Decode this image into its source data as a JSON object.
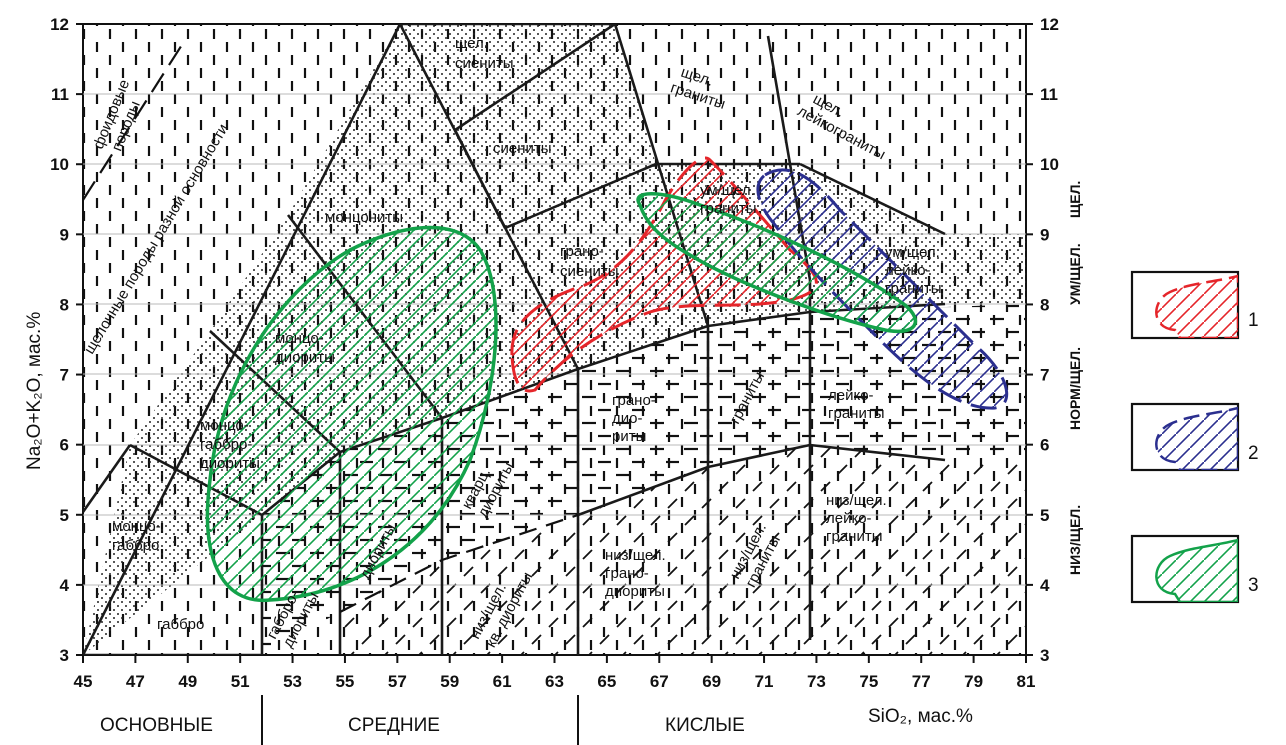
{
  "axes": {
    "x_title": "SiO₂, мас.%",
    "y_title": "Na₂O+K₂O, мас.%",
    "x_ticks": [
      "45",
      "47",
      "49",
      "51",
      "53",
      "55",
      "57",
      "59",
      "61",
      "63",
      "65",
      "67",
      "69",
      "71",
      "73",
      "75",
      "77",
      "79",
      "81"
    ],
    "y_ticks": [
      "3",
      "4",
      "5",
      "6",
      "7",
      "8",
      "9",
      "10",
      "11",
      "12"
    ]
  },
  "groups": {
    "basic": "ОСНОВНЫЕ",
    "intermediate": "СРЕДНИЕ",
    "acid": "КИСЛЫЕ"
  },
  "side_labels": {
    "low": "НИЗ/ЩЕЛ.",
    "normal": "НОРМ/ЩЕЛ.",
    "moderate": "УМ/ЩЕЛ.",
    "alkaline": "ЩЕЛ."
  },
  "fields": {
    "foid": [
      "фоидовые",
      "породы"
    ],
    "alk_diag": "щелочные породы разной основности",
    "alk_syenites": [
      "щел.",
      "сиениты"
    ],
    "syenites": "сиениты",
    "alk_granites": [
      "щел.",
      "граниты"
    ],
    "alk_leucogranites": [
      "щел.",
      "лейкограниты"
    ],
    "monzonites": "монцониты",
    "granosyenites": [
      "грано-",
      "сиениты"
    ],
    "mod_granites": [
      "ум/щел.",
      "граниты"
    ],
    "mod_leucogranites": [
      "ум/щел.",
      "лейко-",
      "граниты"
    ],
    "monzodiorites": [
      "монцо-",
      "диориты"
    ],
    "monzogabbrodiorites": [
      "монцо-",
      "габбро-",
      "диориты"
    ],
    "monzogabbro": [
      "монцо-",
      "габбро"
    ],
    "gabbro": "габбро",
    "gabbrodiorites": [
      "габбро-",
      "диориты"
    ],
    "diorites": "диориты",
    "qtz_diorites": [
      "кварц.",
      "диориты"
    ],
    "granodiorites": [
      "грано-",
      "дио-",
      "риты"
    ],
    "granites": "граниты",
    "leucogranites": [
      "лейко-",
      "граниты"
    ],
    "low_qtz_diorites": [
      "низ/щел.",
      "кв. диориты"
    ],
    "low_granodiorites": [
      "низ/щел.",
      "грано-",
      "диориты"
    ],
    "low_granites": [
      "низ/щел.",
      "граниты"
    ],
    "low_leucogranites": [
      "низ/щел.",
      "лейко-",
      "граниты"
    ]
  },
  "legend": [
    {
      "number": "1",
      "color": "#e5252a"
    },
    {
      "number": "2",
      "color": "#2b2f8f"
    },
    {
      "number": "3",
      "color": "#13a24a"
    }
  ],
  "colors": {
    "red": "#e5252a",
    "blue": "#2b2f8f",
    "green": "#13a24a"
  }
}
